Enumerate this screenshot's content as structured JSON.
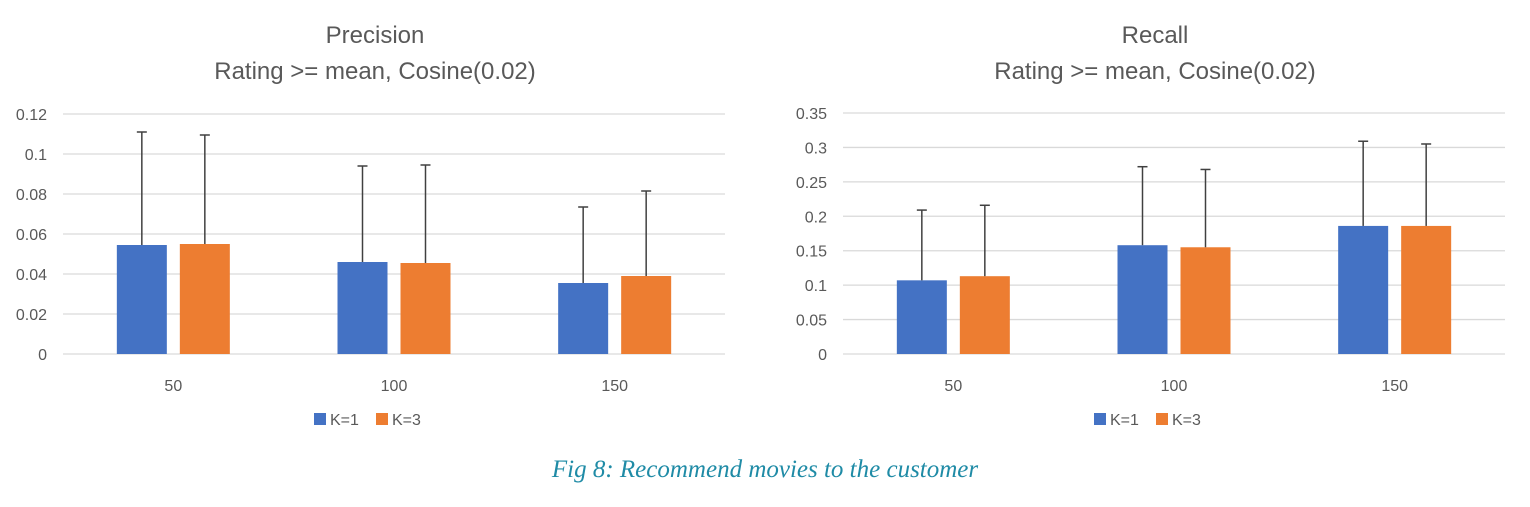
{
  "colors": {
    "k1": "#4472C4",
    "k3": "#ED7D31",
    "grid": "#D9D9D9",
    "axis_text": "#595959",
    "title": "#595959",
    "caption": "#1F8BA6",
    "error_bar": "#404040"
  },
  "chart_data": [
    {
      "type": "bar",
      "title": "Precision",
      "subtitle": "Rating >= mean, Cosine(0.02)",
      "xlabel": "",
      "ylabel": "",
      "categories": [
        "50",
        "100",
        "150"
      ],
      "ylim": [
        0,
        0.12
      ],
      "yticks": [
        0,
        0.02,
        0.04,
        0.06,
        0.08,
        0.1,
        0.12
      ],
      "ytick_labels": [
        "0",
        "0.02",
        "0.04",
        "0.06",
        "0.08",
        "0.1",
        "0.12"
      ],
      "grid": true,
      "legend_position": "bottom",
      "series": [
        {
          "name": "K=1",
          "color": "#4472C4",
          "values": [
            0.0545,
            0.046,
            0.0355
          ],
          "error_upper": [
            0.0565,
            0.048,
            0.038
          ]
        },
        {
          "name": "K=3",
          "color": "#ED7D31",
          "values": [
            0.055,
            0.0455,
            0.039
          ],
          "error_upper": [
            0.0545,
            0.049,
            0.0425
          ]
        }
      ]
    },
    {
      "type": "bar",
      "title": "Recall",
      "subtitle": "Rating >= mean, Cosine(0.02)",
      "xlabel": "",
      "ylabel": "",
      "categories": [
        "50",
        "100",
        "150"
      ],
      "ylim": [
        0,
        0.35
      ],
      "yticks": [
        0,
        0.05,
        0.1,
        0.15,
        0.2,
        0.25,
        0.3,
        0.35
      ],
      "ytick_labels": [
        "0",
        "0.05",
        "0.1",
        "0.15",
        "0.2",
        "0.25",
        "0.3",
        "0.35"
      ],
      "grid": true,
      "legend_position": "bottom",
      "series": [
        {
          "name": "K=1",
          "color": "#4472C4",
          "values": [
            0.107,
            0.158,
            0.186
          ],
          "error_upper": [
            0.102,
            0.114,
            0.123
          ]
        },
        {
          "name": "K=3",
          "color": "#ED7D31",
          "values": [
            0.113,
            0.155,
            0.186
          ],
          "error_upper": [
            0.103,
            0.113,
            0.119
          ]
        }
      ]
    }
  ],
  "caption": "Fig 8: Recommend movies to the customer"
}
